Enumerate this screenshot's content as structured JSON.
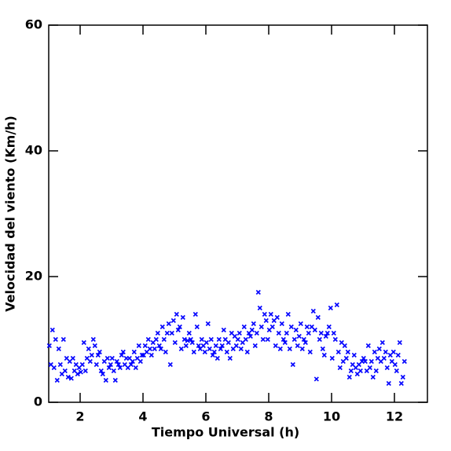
{
  "chart_data": {
    "type": "scatter",
    "xlabel": "Tiempo Universal (h)",
    "ylabel": "Velocidad del viento (Km/h)",
    "xlim": [
      1,
      13.05
    ],
    "ylim": [
      0,
      60
    ],
    "xticks": [
      2,
      4,
      6,
      8,
      10,
      12
    ],
    "yticks": [
      0,
      20,
      40,
      60
    ],
    "color": "#0000ff",
    "x": [
      1.02,
      1.07,
      1.12,
      1.17,
      1.22,
      1.27,
      1.32,
      1.37,
      1.42,
      1.47,
      1.52,
      1.57,
      1.62,
      1.67,
      1.72,
      1.77,
      1.82,
      1.87,
      1.92,
      1.97,
      2.02,
      2.07,
      2.12,
      2.17,
      2.22,
      2.27,
      2.32,
      2.37,
      2.42,
      2.47,
      2.52,
      2.57,
      2.62,
      2.67,
      2.72,
      2.77,
      2.82,
      2.87,
      2.92,
      2.97,
      3.02,
      3.07,
      3.12,
      3.17,
      3.22,
      3.27,
      3.32,
      3.37,
      3.42,
      3.47,
      3.52,
      3.57,
      3.62,
      3.67,
      3.72,
      3.77,
      3.82,
      3.87,
      3.92,
      3.97,
      4.02,
      4.07,
      4.12,
      4.17,
      4.22,
      4.27,
      4.32,
      4.37,
      4.42,
      4.47,
      4.52,
      4.57,
      4.62,
      4.67,
      4.72,
      4.77,
      4.82,
      4.87,
      4.92,
      4.97,
      5.02,
      5.07,
      5.12,
      5.17,
      5.22,
      5.27,
      5.32,
      5.37,
      5.42,
      5.47,
      5.52,
      5.57,
      5.62,
      5.67,
      5.72,
      5.77,
      5.82,
      5.87,
      5.92,
      5.97,
      6.02,
      6.07,
      6.12,
      6.17,
      6.22,
      6.27,
      6.32,
      6.37,
      6.42,
      6.47,
      6.52,
      6.57,
      6.62,
      6.67,
      6.72,
      6.77,
      6.82,
      6.87,
      6.92,
      6.97,
      7.02,
      7.07,
      7.12,
      7.17,
      7.22,
      7.27,
      7.32,
      7.37,
      7.42,
      7.47,
      7.52,
      7.57,
      7.62,
      7.67,
      7.72,
      7.77,
      7.82,
      7.87,
      7.92,
      7.97,
      8.02,
      8.07,
      8.12,
      8.17,
      8.22,
      8.27,
      8.32,
      8.37,
      8.42,
      8.47,
      8.52,
      8.57,
      8.62,
      8.67,
      8.72,
      8.77,
      8.82,
      8.87,
      8.92,
      8.97,
      9.02,
      9.07,
      9.12,
      9.17,
      9.22,
      9.27,
      9.32,
      9.37,
      9.42,
      9.47,
      9.52,
      9.57,
      9.62,
      9.67,
      9.72,
      9.77,
      9.82,
      9.87,
      9.92,
      9.97,
      10.02,
      10.07,
      10.12,
      10.17,
      10.22,
      10.27,
      10.32,
      10.37,
      10.42,
      10.47,
      10.52,
      10.57,
      10.62,
      10.67,
      10.72,
      10.77,
      10.82,
      10.87,
      10.92,
      10.97,
      11.02,
      11.07,
      11.12,
      11.17,
      11.22,
      11.27,
      11.32,
      11.37,
      11.42,
      11.47,
      11.52,
      11.57,
      11.62,
      11.67,
      11.72,
      11.77,
      11.82,
      11.87,
      11.92,
      11.97,
      12.02,
      12.07,
      12.12,
      12.17,
      12.22,
      12.27,
      12.32
    ],
    "values": [
      9,
      6,
      11.5,
      5.5,
      10,
      3.5,
      8.5,
      6,
      4.5,
      10,
      5,
      7,
      4,
      6.5,
      3.8,
      7,
      5,
      6,
      4.5,
      5.5,
      4.8,
      6,
      9.5,
      5,
      7,
      8.5,
      6.5,
      7.5,
      10,
      9,
      6,
      7.5,
      8,
      5,
      4.5,
      6.5,
      3.5,
      7,
      5.5,
      6,
      7,
      5,
      3.5,
      6.5,
      6,
      5.5,
      7.5,
      8,
      6,
      7,
      5.5,
      7,
      6,
      6.5,
      8,
      5.5,
      7,
      9,
      6.5,
      7.5,
      7.5,
      9,
      8,
      10,
      8.5,
      7.5,
      9.5,
      8.5,
      10,
      11,
      9,
      8.5,
      12,
      10,
      8,
      11,
      12.5,
      6,
      11,
      13,
      9.5,
      14,
      11.5,
      12,
      8.5,
      13.5,
      10,
      9,
      9.8,
      11,
      10,
      9.5,
      8,
      14,
      12,
      9,
      8.5,
      10,
      9,
      8,
      9.5,
      12.5,
      8.5,
      10,
      7.5,
      8,
      9,
      7,
      10,
      8.5,
      9,
      11.5,
      10,
      8,
      9.5,
      7,
      11,
      8.5,
      10.5,
      9,
      10,
      11,
      8.5,
      9.5,
      12,
      10,
      8,
      11,
      10.5,
      11.5,
      12.5,
      9,
      11,
      17.5,
      15,
      12,
      10,
      14,
      13,
      10,
      11.5,
      14,
      12,
      13,
      9,
      13.5,
      11,
      8.5,
      12.5,
      10,
      9.5,
      11,
      14,
      8.5,
      12,
      6,
      10,
      11.5,
      9,
      10.5,
      12.5,
      8.5,
      10,
      9.5,
      12,
      11,
      8,
      12,
      14.5,
      11.5,
      3.7,
      13.5,
      10,
      11,
      8.5,
      7.5,
      10.5,
      11,
      12,
      15,
      7,
      11,
      10,
      15.5,
      8,
      5.5,
      9.5,
      6.5,
      9,
      7,
      8,
      4,
      5,
      6,
      7.5,
      5.5,
      4.5,
      6,
      5,
      6.5,
      7,
      6.5,
      5,
      9,
      5.5,
      6.5,
      4,
      8,
      5,
      7,
      8.5,
      6.5,
      9.5,
      7,
      8,
      5.5,
      3,
      7.5,
      6.5,
      8,
      6,
      5,
      7.5,
      9.5,
      3,
      4,
      6.5
    ]
  }
}
